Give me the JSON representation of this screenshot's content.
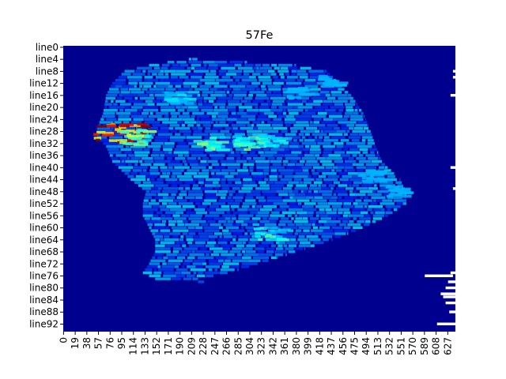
{
  "chart_data": {
    "type": "heatmap",
    "title": "57Fe",
    "xlabel": "",
    "ylabel": "",
    "colormap": "jet",
    "rows": 95,
    "cols": 640,
    "y_tick_labels": [
      "line0",
      "line4",
      "line8",
      "line12",
      "line16",
      "line20",
      "line24",
      "line28",
      "line32",
      "line36",
      "line40",
      "line44",
      "line48",
      "line52",
      "line56",
      "line60",
      "line64",
      "line68",
      "line72",
      "line76",
      "line80",
      "line84",
      "line88",
      "line92"
    ],
    "y_tick_rows": [
      0,
      4,
      8,
      12,
      16,
      20,
      24,
      28,
      32,
      36,
      40,
      44,
      48,
      52,
      56,
      60,
      64,
      68,
      72,
      76,
      80,
      84,
      88,
      92
    ],
    "x_tick_labels": [
      "0",
      "19",
      "38",
      "57",
      "76",
      "95",
      "114",
      "133",
      "152",
      "171",
      "190",
      "209",
      "228",
      "247",
      "266",
      "285",
      "304",
      "323",
      "342",
      "361",
      "380",
      "399",
      "418",
      "437",
      "456",
      "475",
      "494",
      "513",
      "532",
      "551",
      "570",
      "589",
      "608",
      "627"
    ],
    "x_tick_cols": [
      0,
      19,
      38,
      57,
      76,
      95,
      114,
      133,
      152,
      171,
      190,
      209,
      228,
      247,
      266,
      285,
      304,
      323,
      342,
      361,
      380,
      399,
      418,
      437,
      456,
      475,
      494,
      513,
      532,
      551,
      570,
      589,
      608,
      627
    ],
    "hotspots": [
      {
        "row": 29,
        "col": 87,
        "intensity": 1.0
      },
      {
        "row": 30,
        "col": 115,
        "intensity": 0.6
      },
      {
        "row": 32,
        "col": 230,
        "intensity": 0.5
      },
      {
        "row": 32,
        "col": 300,
        "intensity": 0.5
      },
      {
        "row": 31,
        "col": 330,
        "intensity": 0.45
      },
      {
        "row": 62,
        "col": 330,
        "intensity": 0.45
      },
      {
        "row": 17,
        "col": 180,
        "intensity": 0.35
      },
      {
        "row": 11,
        "col": 430,
        "intensity": 0.3
      },
      {
        "row": 15,
        "col": 380,
        "intensity": 0.3
      },
      {
        "row": 48,
        "col": 540,
        "intensity": 0.3
      },
      {
        "row": 43,
        "col": 500,
        "intensity": 0.3
      }
    ]
  }
}
